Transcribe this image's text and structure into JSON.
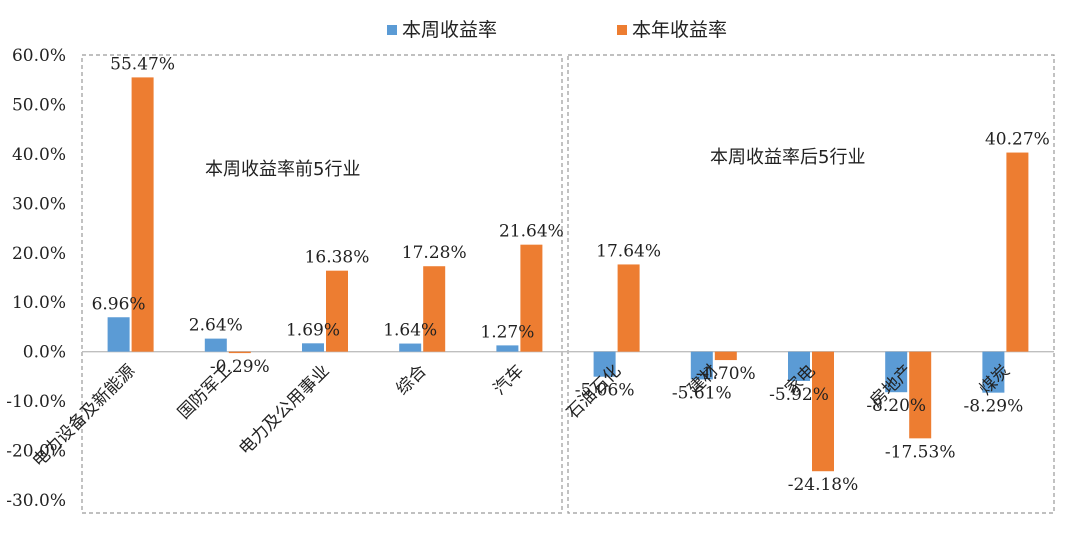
{
  "chart_data": {
    "type": "bar",
    "ylim": [
      -30,
      60
    ],
    "y_ticks": [
      "60.0%",
      "50.0%",
      "40.0%",
      "30.0%",
      "20.0%",
      "10.0%",
      "0.0%",
      "-10.0%",
      "-20.0%",
      "-30.0%"
    ],
    "y_tick_values": [
      60,
      50,
      40,
      30,
      20,
      10,
      0,
      -10,
      -20,
      -30
    ],
    "categories": [
      "电力设备及新能源",
      "国防军工",
      "电力及公用事业",
      "综合",
      "汽车",
      "石油石化",
      "建材",
      "家电",
      "房地产",
      "煤炭"
    ],
    "series": [
      {
        "name": "本周收益率",
        "color": "#5B9BD5",
        "values": [
          6.96,
          2.64,
          1.69,
          1.64,
          1.27,
          -5.06,
          -5.61,
          -5.92,
          -8.2,
          -8.29
        ],
        "labels": [
          "6.96%",
          "2.64%",
          "1.69%",
          "1.64%",
          "1.27%",
          "-5.06%",
          "-5.61%",
          "-5.92%",
          "-8.20%",
          "-8.29%"
        ]
      },
      {
        "name": "本年收益率",
        "color": "#ED7D31",
        "values": [
          55.47,
          -0.29,
          16.38,
          17.28,
          21.64,
          17.64,
          -1.7,
          -24.18,
          -17.53,
          40.27
        ],
        "labels": [
          "55.47%",
          "-0.29%",
          "16.38%",
          "17.28%",
          "21.64%",
          "17.64%",
          "-1.70%",
          "-24.18%",
          "-17.53%",
          "40.27%"
        ]
      }
    ],
    "annotations": [
      "本周收益率前5行业",
      "本周收益率后5行业"
    ],
    "legend_position": "top-center",
    "grid": false
  }
}
